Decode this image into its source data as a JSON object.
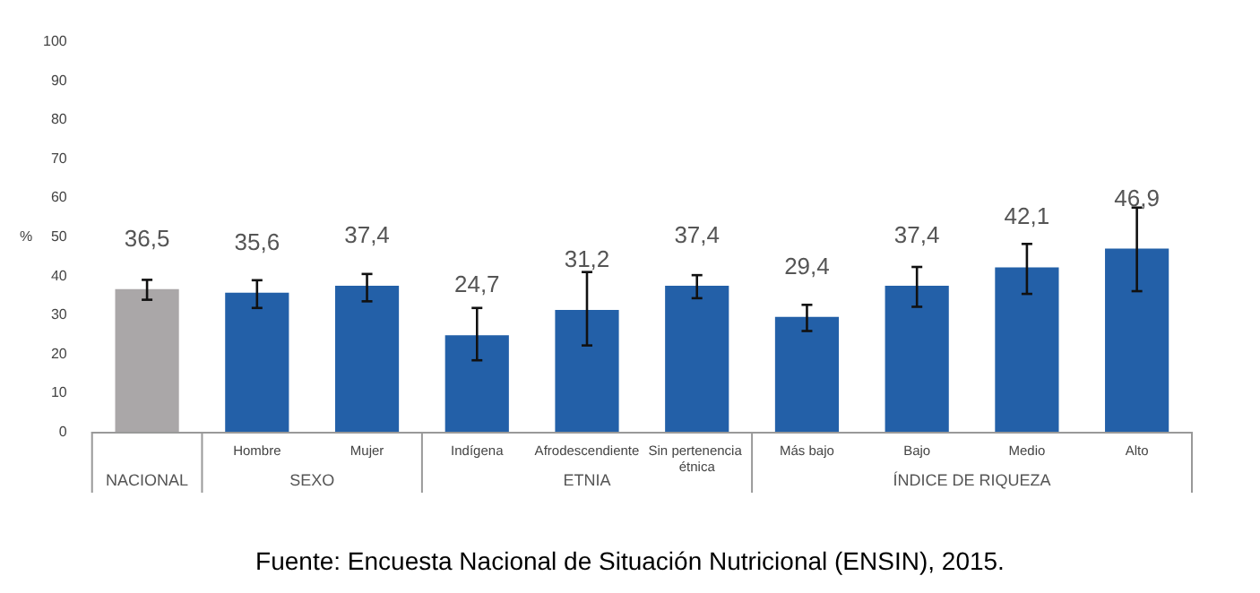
{
  "chart_data": {
    "type": "bar",
    "ylabel": "%",
    "categories": [
      null,
      "Hombre",
      "Mujer",
      "Indígena",
      "Afrodescendiente",
      "Sin pertenencia étnica",
      "Más bajo",
      "Bajo",
      "Medio",
      "Alto"
    ],
    "values": [
      36.5,
      35.6,
      37.4,
      24.7,
      31.2,
      37.4,
      29.4,
      37.4,
      42.1,
      46.9
    ],
    "value_labels": [
      "36,5",
      "35,6",
      "37,4",
      "24,7",
      "31,2",
      "37,4",
      "29,4",
      "37,4",
      "42,1",
      "46,9"
    ],
    "errors": [
      [
        33.8,
        38.9
      ],
      [
        31.7,
        38.8
      ],
      [
        33.4,
        40.4
      ],
      [
        18.3,
        31.7
      ],
      [
        22.1,
        40.9
      ],
      [
        34.2,
        40.1
      ],
      [
        25.8,
        32.5
      ],
      [
        32.0,
        42.2
      ],
      [
        35.3,
        48.1
      ],
      [
        36.0,
        57.4
      ]
    ],
    "colors": [
      "#aaa7a8",
      "#2360a8",
      "#2360a8",
      "#2360a8",
      "#2360a8",
      "#2360a8",
      "#2360a8",
      "#2360a8",
      "#2360a8",
      "#2360a8"
    ],
    "ylim": [
      0,
      100
    ],
    "yticks": [
      0,
      10,
      20,
      30,
      40,
      50,
      60,
      70,
      80,
      90,
      100
    ],
    "grid": false,
    "annotations": [
      "NACIONAL",
      "SEXO",
      "ETNIA",
      "ÍNDICE DE RIQUEZA",
      "Fuente: Encuesta Nacional de Situación Nutricional (ENSIN), 2015."
    ]
  }
}
